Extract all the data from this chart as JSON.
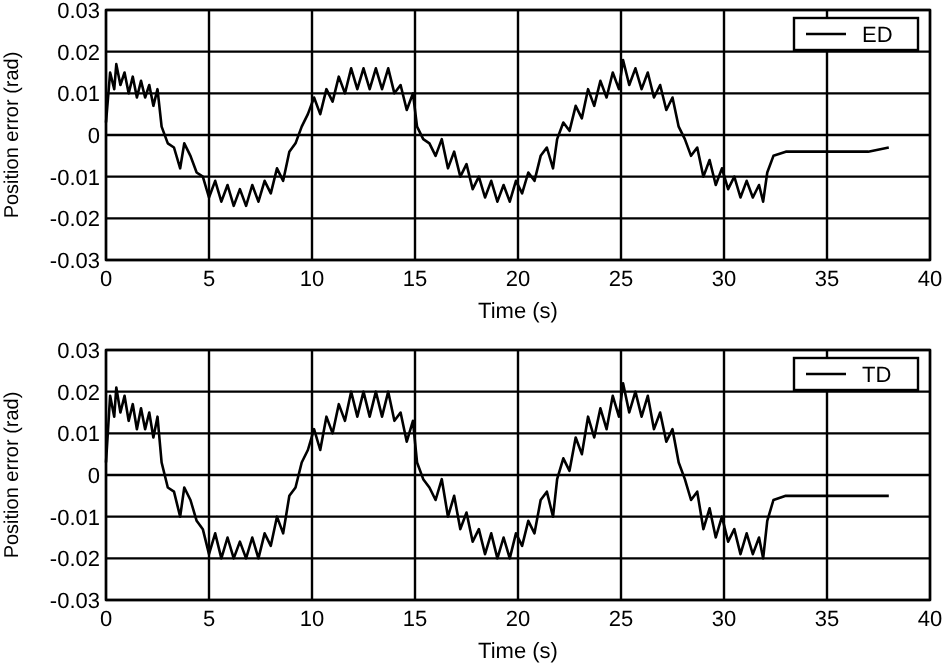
{
  "chart_data": [
    {
      "type": "line",
      "xlabel": "Time (s)",
      "ylabel": "Position error (rad)",
      "xlim": [
        0,
        40
      ],
      "ylim": [
        -0.03,
        0.03
      ],
      "xticks": [
        0,
        5,
        10,
        15,
        20,
        25,
        30,
        35,
        40
      ],
      "yticks": [
        -0.03,
        -0.02,
        -0.01,
        0,
        0.01,
        0.02,
        0.03
      ],
      "grid": true,
      "legend": "top right",
      "x": [
        0,
        0.2,
        0.4,
        0.5,
        0.7,
        0.9,
        1.1,
        1.3,
        1.5,
        1.7,
        1.9,
        2.1,
        2.3,
        2.5,
        2.7,
        3.0,
        3.3,
        3.6,
        3.8,
        4.1,
        4.4,
        4.7,
        5.0,
        5.3,
        5.6,
        5.9,
        6.2,
        6.5,
        6.8,
        7.1,
        7.4,
        7.7,
        8.0,
        8.3,
        8.6,
        8.9,
        9.2,
        9.5,
        9.8,
        10.1,
        10.4,
        10.7,
        11.0,
        11.3,
        11.6,
        11.9,
        12.2,
        12.5,
        12.8,
        13.1,
        13.4,
        13.7,
        14.0,
        14.3,
        14.6,
        14.9,
        15.1,
        15.4,
        15.7,
        16.0,
        16.3,
        16.6,
        16.9,
        17.2,
        17.5,
        17.8,
        18.1,
        18.4,
        18.7,
        19.0,
        19.3,
        19.6,
        19.9,
        20.2,
        20.5,
        20.8,
        21.1,
        21.4,
        21.7,
        21.9,
        22.2,
        22.5,
        22.8,
        23.1,
        23.4,
        23.7,
        24.0,
        24.3,
        24.6,
        24.9,
        25.1,
        25.4,
        25.7,
        26.0,
        26.3,
        26.6,
        26.9,
        27.2,
        27.5,
        27.8,
        28.1,
        28.4,
        28.7,
        29.0,
        29.3,
        29.6,
        29.9,
        30.2,
        30.5,
        30.8,
        31.1,
        31.4,
        31.7,
        31.9,
        32.1,
        32.4,
        33,
        35,
        37,
        38
      ],
      "series": [
        {
          "name": "ED",
          "color": "#000000",
          "values": [
            0.003,
            0.015,
            0.011,
            0.017,
            0.012,
            0.015,
            0.01,
            0.014,
            0.009,
            0.013,
            0.009,
            0.012,
            0.007,
            0.011,
            0.002,
            -0.002,
            -0.003,
            -0.008,
            -0.002,
            -0.005,
            -0.009,
            -0.01,
            -0.015,
            -0.011,
            -0.016,
            -0.012,
            -0.017,
            -0.013,
            -0.017,
            -0.012,
            -0.016,
            -0.011,
            -0.014,
            -0.008,
            -0.011,
            -0.004,
            -0.002,
            0.002,
            0.005,
            0.009,
            0.005,
            0.011,
            0.008,
            0.014,
            0.01,
            0.016,
            0.011,
            0.016,
            0.011,
            0.016,
            0.011,
            0.016,
            0.01,
            0.012,
            0.006,
            0.01,
            0.002,
            -0.001,
            -0.002,
            -0.005,
            -0.001,
            -0.008,
            -0.004,
            -0.01,
            -0.007,
            -0.013,
            -0.01,
            -0.015,
            -0.011,
            -0.016,
            -0.012,
            -0.016,
            -0.011,
            -0.014,
            -0.009,
            -0.011,
            -0.005,
            -0.003,
            -0.008,
            -0.001,
            0.003,
            0.001,
            0.007,
            0.004,
            0.011,
            0.007,
            0.013,
            0.009,
            0.015,
            0.011,
            0.018,
            0.012,
            0.016,
            0.011,
            0.015,
            0.009,
            0.012,
            0.006,
            0.009,
            0.002,
            -0.001,
            -0.005,
            -0.003,
            -0.01,
            -0.006,
            -0.012,
            -0.008,
            -0.013,
            -0.01,
            -0.015,
            -0.011,
            -0.015,
            -0.012,
            -0.016,
            -0.009,
            -0.005,
            -0.004,
            -0.004,
            -0.004,
            -0.003
          ]
        }
      ]
    },
    {
      "type": "line",
      "xlabel": "Time (s)",
      "ylabel": "Position error (rad)",
      "xlim": [
        0,
        40
      ],
      "ylim": [
        -0.03,
        0.03
      ],
      "xticks": [
        0,
        5,
        10,
        15,
        20,
        25,
        30,
        35,
        40
      ],
      "yticks": [
        -0.03,
        -0.02,
        -0.01,
        0,
        0.01,
        0.02,
        0.03
      ],
      "grid": true,
      "legend": "top right",
      "x": [
        0,
        0.2,
        0.4,
        0.5,
        0.7,
        0.9,
        1.1,
        1.3,
        1.5,
        1.7,
        1.9,
        2.1,
        2.3,
        2.5,
        2.7,
        3.0,
        3.3,
        3.6,
        3.8,
        4.1,
        4.4,
        4.7,
        5.0,
        5.3,
        5.6,
        5.9,
        6.2,
        6.5,
        6.8,
        7.1,
        7.4,
        7.7,
        8.0,
        8.3,
        8.6,
        8.9,
        9.2,
        9.5,
        9.8,
        10.1,
        10.4,
        10.7,
        11.0,
        11.3,
        11.6,
        11.9,
        12.2,
        12.5,
        12.8,
        13.1,
        13.4,
        13.7,
        14.0,
        14.3,
        14.6,
        14.9,
        15.1,
        15.4,
        15.7,
        16.0,
        16.3,
        16.6,
        16.9,
        17.2,
        17.5,
        17.8,
        18.1,
        18.4,
        18.7,
        19.0,
        19.3,
        19.6,
        19.9,
        20.2,
        20.5,
        20.8,
        21.1,
        21.4,
        21.7,
        21.9,
        22.2,
        22.5,
        22.8,
        23.1,
        23.4,
        23.7,
        24.0,
        24.3,
        24.6,
        24.9,
        25.1,
        25.4,
        25.7,
        26.0,
        26.3,
        26.6,
        26.9,
        27.2,
        27.5,
        27.8,
        28.1,
        28.4,
        28.7,
        29.0,
        29.3,
        29.6,
        29.9,
        30.2,
        30.5,
        30.8,
        31.1,
        31.4,
        31.7,
        31.9,
        32.1,
        32.4,
        33,
        35,
        37,
        38
      ],
      "series": [
        {
          "name": "TD",
          "color": "#000000",
          "values": [
            0.003,
            0.019,
            0.014,
            0.021,
            0.015,
            0.019,
            0.013,
            0.017,
            0.011,
            0.016,
            0.011,
            0.015,
            0.009,
            0.014,
            0.003,
            -0.003,
            -0.004,
            -0.01,
            -0.003,
            -0.006,
            -0.011,
            -0.013,
            -0.019,
            -0.014,
            -0.02,
            -0.015,
            -0.02,
            -0.016,
            -0.02,
            -0.015,
            -0.02,
            -0.014,
            -0.017,
            -0.01,
            -0.014,
            -0.005,
            -0.003,
            0.003,
            0.006,
            0.011,
            0.006,
            0.014,
            0.01,
            0.017,
            0.013,
            0.02,
            0.014,
            0.02,
            0.014,
            0.02,
            0.014,
            0.02,
            0.013,
            0.015,
            0.008,
            0.013,
            0.003,
            -0.001,
            -0.003,
            -0.006,
            -0.001,
            -0.01,
            -0.005,
            -0.013,
            -0.009,
            -0.016,
            -0.013,
            -0.019,
            -0.014,
            -0.02,
            -0.015,
            -0.02,
            -0.014,
            -0.017,
            -0.011,
            -0.014,
            -0.006,
            -0.004,
            -0.01,
            -0.001,
            0.004,
            0.001,
            0.009,
            0.005,
            0.014,
            0.009,
            0.016,
            0.011,
            0.019,
            0.014,
            0.022,
            0.015,
            0.02,
            0.014,
            0.019,
            0.011,
            0.015,
            0.008,
            0.011,
            0.003,
            -0.001,
            -0.006,
            -0.004,
            -0.013,
            -0.008,
            -0.015,
            -0.01,
            -0.016,
            -0.013,
            -0.019,
            -0.014,
            -0.019,
            -0.015,
            -0.02,
            -0.011,
            -0.006,
            -0.005,
            -0.005,
            -0.005,
            -0.005
          ]
        }
      ]
    }
  ]
}
